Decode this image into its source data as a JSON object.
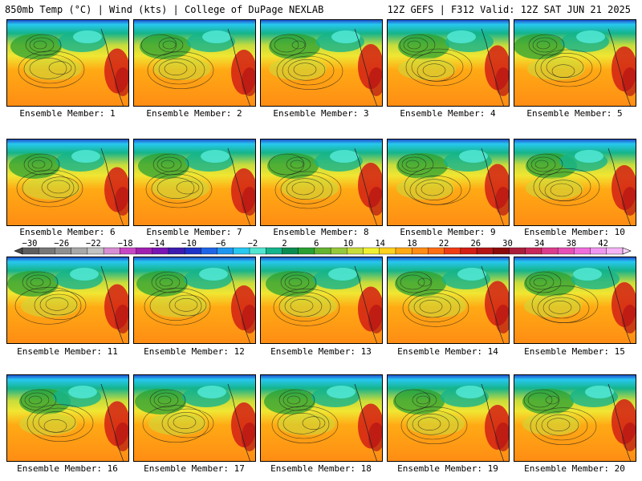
{
  "header": {
    "left": "850mb Temp (°C) | Wind (kts) | College of DuPage NEXLAB",
    "right": "12Z GEFS | F312 Valid: 12Z SAT JUN 21 2025"
  },
  "members": [
    "Ensemble Member: 1",
    "Ensemble Member: 2",
    "Ensemble Member: 3",
    "Ensemble Member: 4",
    "Ensemble Member: 5",
    "Ensemble Member: 6",
    "Ensemble Member: 7",
    "Ensemble Member: 8",
    "Ensemble Member: 9",
    "Ensemble Member: 10",
    "Ensemble Member: 11",
    "Ensemble Member: 12",
    "Ensemble Member: 13",
    "Ensemble Member: 14",
    "Ensemble Member: 15",
    "Ensemble Member: 16",
    "Ensemble Member: 17",
    "Ensemble Member: 18",
    "Ensemble Member: 19",
    "Ensemble Member: 20"
  ],
  "colorbar": {
    "ticks": [
      "−30",
      "−26",
      "−22",
      "−18",
      "−14",
      "−10",
      "−6",
      "−2",
      "2",
      "6",
      "10",
      "14",
      "18",
      "22",
      "26",
      "30",
      "34",
      "38",
      "42"
    ],
    "colors": [
      "#5e5e5e",
      "#777777",
      "#8f8f8f",
      "#a8a8a8",
      "#c2c2c2",
      "#d78ed2",
      "#c846c4",
      "#a020b0",
      "#7a14b4",
      "#3c1cb0",
      "#1e32c8",
      "#1e64e6",
      "#1e96f0",
      "#28c8f0",
      "#50e6d2",
      "#14b48c",
      "#0a8c50",
      "#2aa032",
      "#64b432",
      "#96c83c",
      "#c8dc3c",
      "#f0f032",
      "#ffd21e",
      "#ffaa14",
      "#ff8c14",
      "#ff6e14",
      "#f03c14",
      "#d21e14",
      "#b41414",
      "#8c0a0a",
      "#aa1e3c",
      "#c8285a",
      "#dc3c8c",
      "#e650b4",
      "#f06edc",
      "#f096f0",
      "#f5b4f5"
    ]
  }
}
